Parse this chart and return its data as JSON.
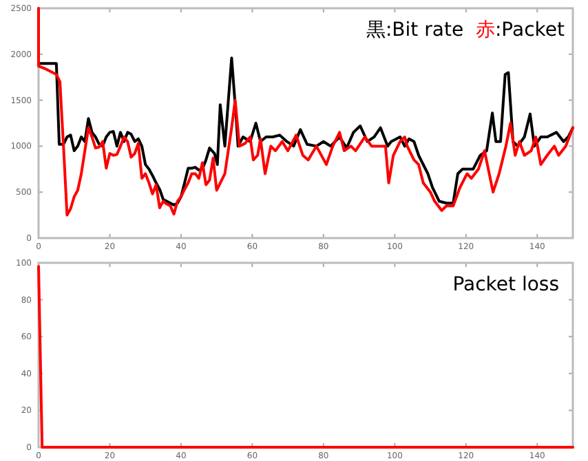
{
  "chart_data": [
    {
      "type": "line",
      "xlim": [
        0,
        150
      ],
      "xticks": [
        0,
        20,
        40,
        60,
        80,
        100,
        120,
        140
      ],
      "ylim": [
        0,
        2500
      ],
      "yticks": [
        0,
        500,
        1000,
        1500,
        2000,
        2500
      ],
      "legend": "top right",
      "series": [
        {
          "name": "黒:Bit rate",
          "color": "#000000",
          "x": [
            0,
            5,
            5.8,
            7,
            8,
            9,
            10,
            11,
            12,
            13,
            14,
            15,
            16,
            17,
            18,
            19,
            20,
            21,
            22,
            23,
            24,
            25,
            26,
            27,
            28,
            29,
            30,
            31,
            32,
            33,
            34,
            35,
            36,
            37,
            38,
            39,
            40,
            41,
            42,
            43,
            44,
            45,
            46,
            47,
            48,
            49.4,
            50.2,
            51,
            52.3,
            54.2,
            55.5,
            56,
            57.4,
            59.4,
            61,
            62.3,
            63.9,
            65.8,
            67.7,
            69.7,
            71.6,
            73.5,
            75.4,
            78,
            80,
            82,
            84.5,
            86.5,
            88.4,
            90.3,
            92.3,
            94.2,
            96,
            98,
            99,
            101.5,
            102.8,
            104,
            105.4,
            106.7,
            109.3,
            110.6,
            112.5,
            114.5,
            116.4,
            117.7,
            119,
            121,
            122,
            124,
            125.8,
            127.4,
            128.4,
            129.7,
            131,
            131.9,
            133.2,
            134.5,
            136.4,
            138,
            139.2,
            141,
            142.8,
            145.4,
            147.4,
            148.7,
            150
          ],
          "values": [
            1900,
            1900,
            1020,
            1020,
            1100,
            1120,
            950,
            1000,
            1100,
            1050,
            1300,
            1150,
            1100,
            1020,
            1000,
            1100,
            1150,
            1160,
            1000,
            1150,
            1050,
            1150,
            1130,
            1050,
            1080,
            1000,
            800,
            750,
            680,
            600,
            530,
            420,
            400,
            380,
            360,
            380,
            450,
            600,
            760,
            760,
            770,
            740,
            750,
            850,
            980,
            920,
            800,
            1450,
            1000,
            1960,
            1300,
            1000,
            1100,
            1050,
            1250,
            1050,
            1100,
            1100,
            1120,
            1050,
            1000,
            1180,
            1020,
            1000,
            1050,
            1000,
            1100,
            980,
            1150,
            1220,
            1050,
            1100,
            1200,
            1000,
            1050,
            1100,
            1000,
            1080,
            1050,
            900,
            700,
            550,
            400,
            380,
            380,
            700,
            750,
            750,
            750,
            900,
            950,
            1360,
            1050,
            1050,
            1780,
            1800,
            1050,
            1000,
            1100,
            1350,
            1000,
            1100,
            1100,
            1150,
            1050,
            1100,
            1200
          ]
        },
        {
          "name": "赤:Packet",
          "color": "#ff0000",
          "x": [
            0,
            0,
            2,
            4,
            5,
            6,
            7,
            8,
            9,
            10,
            11,
            12,
            13,
            14,
            15,
            16,
            17,
            18,
            19,
            20,
            21,
            22,
            23,
            24,
            25,
            26,
            27,
            28,
            29,
            30,
            31,
            32,
            33,
            34,
            35,
            36,
            37,
            38,
            39,
            40,
            41,
            42,
            43,
            44,
            45,
            46,
            47,
            48,
            49,
            50,
            52.3,
            54.2,
            55.2,
            56.4,
            58,
            59.4,
            60.3,
            61.5,
            62.3,
            63.6,
            65.2,
            66.5,
            68.4,
            70,
            72.3,
            74.2,
            75.7,
            78,
            80.8,
            82.6,
            84.5,
            85.8,
            87.7,
            89,
            91.6,
            93.5,
            97.4,
            98.3,
            99.6,
            101.5,
            102.8,
            103.5,
            105.4,
            106.7,
            108,
            110,
            111.2,
            113.2,
            114.5,
            116.4,
            118.3,
            120.3,
            121.5,
            123.5,
            125.2,
            127.6,
            129.3,
            131.2,
            132.5,
            133.8,
            135,
            136.4,
            138.3,
            139.6,
            141,
            142.8,
            144.8,
            146,
            148,
            150
          ],
          "values": [
            2500,
            1870,
            1840,
            1800,
            1780,
            1700,
            1000,
            250,
            320,
            450,
            520,
            700,
            950,
            1200,
            1100,
            980,
            990,
            1050,
            760,
            920,
            900,
            910,
            1000,
            1100,
            1050,
            880,
            920,
            1030,
            650,
            700,
            600,
            480,
            580,
            330,
            400,
            370,
            350,
            260,
            400,
            450,
            530,
            600,
            700,
            700,
            650,
            820,
            580,
            630,
            870,
            520,
            700,
            1200,
            1500,
            1000,
            1030,
            1100,
            850,
            900,
            1080,
            700,
            1000,
            950,
            1050,
            950,
            1120,
            900,
            850,
            1000,
            800,
            1000,
            1150,
            950,
            1000,
            950,
            1100,
            1000,
            1000,
            600,
            900,
            1050,
            1100,
            1000,
            850,
            800,
            600,
            500,
            400,
            300,
            350,
            350,
            550,
            700,
            650,
            750,
            950,
            500,
            700,
            1000,
            1250,
            900,
            1050,
            900,
            950,
            1100,
            800,
            900,
            1000,
            900,
            1000,
            1200
          ]
        }
      ]
    },
    {
      "type": "line",
      "title": "Packet loss",
      "xlim": [
        0,
        150
      ],
      "xticks": [
        0,
        20,
        40,
        60,
        80,
        100,
        120,
        140
      ],
      "ylim": [
        0,
        100
      ],
      "yticks": [
        0,
        20,
        40,
        60,
        80,
        100
      ],
      "series": [
        {
          "color": "#ff0000",
          "x": [
            0,
            1,
            150
          ],
          "values": [
            98,
            0,
            0
          ]
        }
      ]
    }
  ]
}
